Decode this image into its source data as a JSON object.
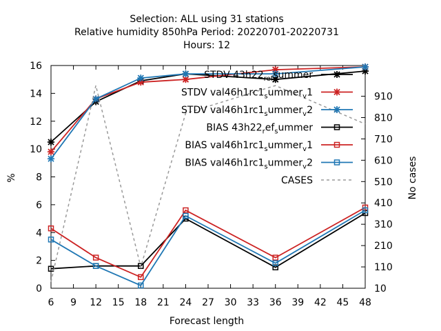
{
  "chart_data": {
    "type": "line",
    "title_lines": [
      "Selection: ALL using    31 stations",
      "Relative humidity 850hPa   Period: 20220701-20220731",
      "Hours:  12"
    ],
    "xlabel": "Forecast length",
    "ylabel": "%",
    "y2label": "No cases",
    "xlim": [
      6,
      48
    ],
    "ylim": [
      0,
      16
    ],
    "y2lim": [
      10,
      1054
    ],
    "x_ticks": [
      6,
      9,
      12,
      15,
      18,
      21,
      24,
      27,
      30,
      33,
      36,
      39,
      42,
      45,
      48
    ],
    "y_ticks": [
      0,
      2,
      4,
      6,
      8,
      10,
      12,
      14,
      16
    ],
    "y2_ticks": [
      10,
      110,
      210,
      310,
      410,
      510,
      610,
      710,
      810,
      910
    ],
    "grid": false,
    "legend_position": "top-right",
    "series": [
      {
        "name": "STDV 43h22_ref_summer",
        "legend_parts": [
          "STDV 43h22",
          "ref",
          "summer"
        ],
        "color": "#000000",
        "marker": "star",
        "dash": false,
        "axis": "y",
        "x": [
          6,
          12,
          18,
          24,
          36,
          48
        ],
        "values": [
          10.5,
          13.4,
          14.9,
          15.4,
          15.0,
          15.6
        ]
      },
      {
        "name": "STDV val46h1rc1_summer_v1",
        "legend_parts": [
          "STDV val46h1rc1",
          "s",
          "ummer",
          "v",
          "1"
        ],
        "color": "#cc2222",
        "marker": "star",
        "dash": false,
        "axis": "y",
        "x": [
          6,
          12,
          18,
          24,
          36,
          48
        ],
        "values": [
          9.8,
          13.6,
          14.8,
          15.0,
          15.7,
          15.9
        ]
      },
      {
        "name": "STDV val46h1rc1_summer_v2",
        "legend_parts": [
          "STDV val46h1rc1",
          "s",
          "ummer",
          "v",
          "2"
        ],
        "color": "#1f77b4",
        "marker": "star",
        "dash": false,
        "axis": "y",
        "x": [
          6,
          12,
          18,
          24,
          36,
          48
        ],
        "values": [
          9.3,
          13.6,
          15.1,
          15.4,
          15.4,
          15.9
        ]
      },
      {
        "name": "BIAS 43h22_ref_summer",
        "legend_parts": [
          "BIAS 43h22",
          "r",
          "ef",
          "s",
          "ummer"
        ],
        "color": "#000000",
        "marker": "square",
        "dash": false,
        "axis": "y",
        "x": [
          6,
          12,
          18,
          24,
          36,
          48
        ],
        "values": [
          1.4,
          1.6,
          1.6,
          5.0,
          1.5,
          5.4
        ]
      },
      {
        "name": "BIAS val46h1rc1_summer_v1",
        "legend_parts": [
          "BIAS val46h1rc1",
          "s",
          "ummer",
          "v",
          "1"
        ],
        "color": "#cc2222",
        "marker": "square",
        "dash": false,
        "axis": "y",
        "x": [
          6,
          12,
          18,
          24,
          36,
          48
        ],
        "values": [
          4.3,
          2.2,
          0.8,
          5.6,
          2.2,
          5.8
        ]
      },
      {
        "name": "BIAS val46h1rc1_summer_v2",
        "legend_parts": [
          "BIAS val46h1rc1",
          "s",
          "ummer",
          "v",
          "2"
        ],
        "color": "#1f77b4",
        "marker": "square",
        "dash": false,
        "axis": "y",
        "x": [
          6,
          12,
          18,
          24,
          36,
          48
        ],
        "values": [
          3.5,
          1.6,
          0.2,
          5.2,
          1.8,
          5.6
        ]
      },
      {
        "name": "CASES",
        "legend_parts": [
          "CASES"
        ],
        "color": "#999999",
        "marker": "none",
        "dash": true,
        "axis": "y2",
        "x": [
          6,
          12,
          18,
          24,
          36,
          48
        ],
        "values": [
          40,
          960,
          110,
          830,
          960,
          780
        ]
      }
    ]
  }
}
